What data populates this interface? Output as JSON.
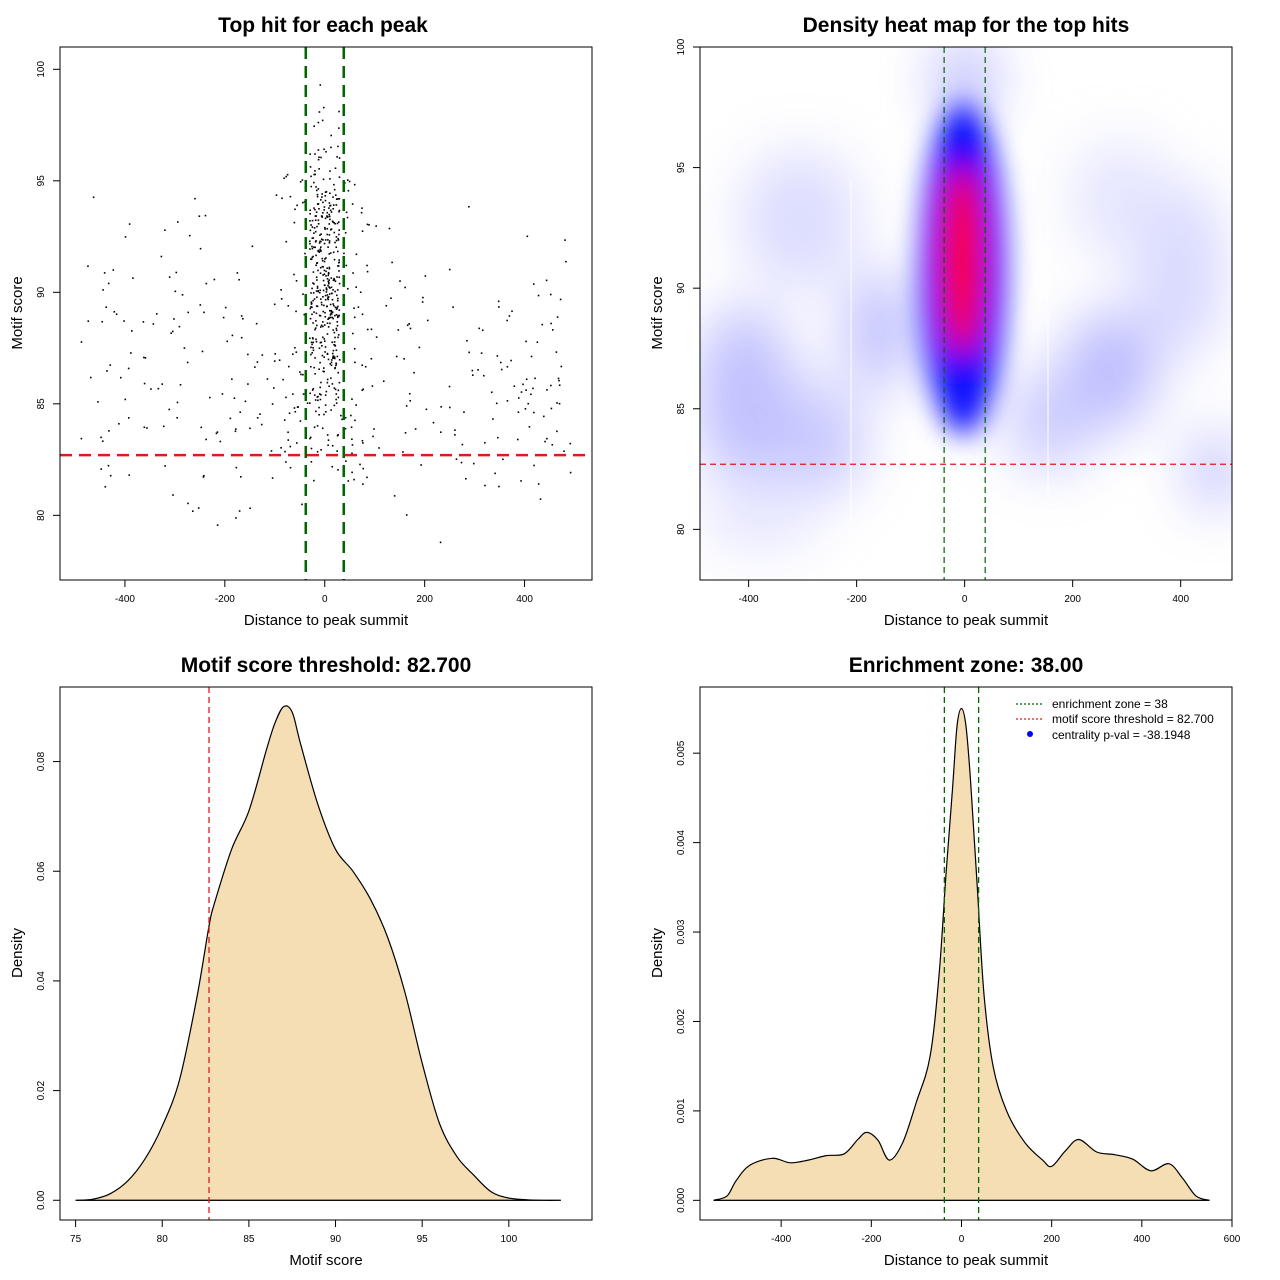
{
  "colors": {
    "threshold": "#e0191e",
    "zone": "#006400",
    "fill": "#f5deb3",
    "heat_low": "#ffffff",
    "heat_mid": "#0000ff",
    "heat_high": "#ff0000",
    "point": "#000000"
  },
  "chart_data": [
    {
      "type": "scatter",
      "title": "Top hit for each peak",
      "xlabel": "Distance to peak summit",
      "ylabel": "Motif score",
      "xlim": [
        -530,
        535
      ],
      "ylim": [
        77.1,
        101
      ],
      "xticks": [
        -400,
        -200,
        0,
        200,
        400
      ],
      "yticks": [
        80,
        85,
        90,
        95,
        100
      ],
      "threshold": 82.7,
      "zone": [
        -38,
        38
      ],
      "points_summary": "about 700 top hits; dense core within +/-38 of the summit with scores 82-100, sparse background scores 78-95 across -500..500"
    },
    {
      "type": "heatmap",
      "title": "Density heat map for the top hits",
      "xlabel": "Distance to peak summit",
      "ylabel": "Motif score",
      "xlim": [
        -490,
        495
      ],
      "ylim": [
        77.9,
        100
      ],
      "xticks": [
        -400,
        -200,
        0,
        200,
        400
      ],
      "yticks": [
        80,
        85,
        90,
        95,
        100
      ],
      "threshold": 82.7,
      "zone": [
        -38,
        38
      ],
      "hotspot": {
        "x": 0,
        "y": 91,
        "peak_color": "red"
      }
    },
    {
      "type": "area",
      "title": "Motif score threshold: 82.700",
      "xlabel": "Motif score",
      "ylabel": "Density",
      "xlim": [
        74.1,
        104.8
      ],
      "ylim": [
        -0.0036,
        0.0936
      ],
      "xticks": [
        75,
        80,
        85,
        90,
        95,
        100
      ],
      "yticks": [
        0.0,
        0.02,
        0.04,
        0.06,
        0.08
      ],
      "ytick_labels": [
        "0.00",
        "0.02",
        "0.04",
        "0.06",
        "0.08"
      ],
      "threshold": 82.7,
      "x": [
        75,
        76,
        77,
        78,
        79,
        80,
        81,
        82,
        82.7,
        83,
        84,
        85,
        86,
        86.5,
        87,
        87.5,
        88,
        89,
        90,
        91,
        92,
        93,
        94,
        95,
        96,
        97,
        98,
        99,
        100,
        101,
        102,
        103
      ],
      "y": [
        0.0,
        0.0002,
        0.0012,
        0.0035,
        0.0075,
        0.0135,
        0.022,
        0.037,
        0.05,
        0.054,
        0.064,
        0.071,
        0.082,
        0.087,
        0.09,
        0.089,
        0.083,
        0.072,
        0.064,
        0.06,
        0.055,
        0.048,
        0.038,
        0.025,
        0.014,
        0.008,
        0.0045,
        0.0015,
        0.0004,
        0.0001,
        0.0,
        0.0
      ]
    },
    {
      "type": "area",
      "title": "Enrichment zone: 38.00",
      "xlabel": "Distance to peak summit",
      "ylabel": "Density",
      "xlim": [
        -580,
        600
      ],
      "ylim": [
        -0.00022,
        0.00574
      ],
      "xticks": [
        -400,
        -200,
        0,
        200,
        400,
        600
      ],
      "yticks": [
        0.0,
        0.001,
        0.002,
        0.003,
        0.004,
        0.005
      ],
      "ytick_labels": [
        "0.000",
        "0.001",
        "0.002",
        "0.003",
        "0.004",
        "0.005"
      ],
      "zone": [
        -38,
        38
      ],
      "x": [
        -550,
        -520,
        -500,
        -470,
        -420,
        -380,
        -340,
        -300,
        -260,
        -230,
        -210,
        -185,
        -160,
        -130,
        -100,
        -70,
        -50,
        -35,
        -20,
        -10,
        0,
        10,
        20,
        35,
        50,
        70,
        100,
        140,
        180,
        200,
        230,
        260,
        300,
        340,
        380,
        420,
        460,
        490,
        520,
        550
      ],
      "y": [
        0.0,
        5e-05,
        0.00022,
        0.00039,
        0.00047,
        0.00042,
        0.00045,
        0.0005,
        0.00052,
        0.00068,
        0.00076,
        0.00067,
        0.00045,
        0.00065,
        0.0011,
        0.0016,
        0.0025,
        0.0036,
        0.0046,
        0.0053,
        0.0055,
        0.0053,
        0.0047,
        0.0035,
        0.0023,
        0.0015,
        0.001,
        0.00065,
        0.00045,
        0.00038,
        0.00055,
        0.00068,
        0.00054,
        0.00051,
        0.00046,
        0.00033,
        0.00041,
        0.00025,
        5e-05,
        0.0
      ]
    }
  ],
  "legend": {
    "items": [
      {
        "label": "enrichment zone = 38",
        "kind": "line",
        "color": "#006400"
      },
      {
        "label": "motif score threshold = 82.700",
        "kind": "line",
        "color": "#e0191e"
      },
      {
        "label": "centrality p-val = -38.1948",
        "kind": "dot",
        "color": "#0000ff"
      }
    ]
  }
}
